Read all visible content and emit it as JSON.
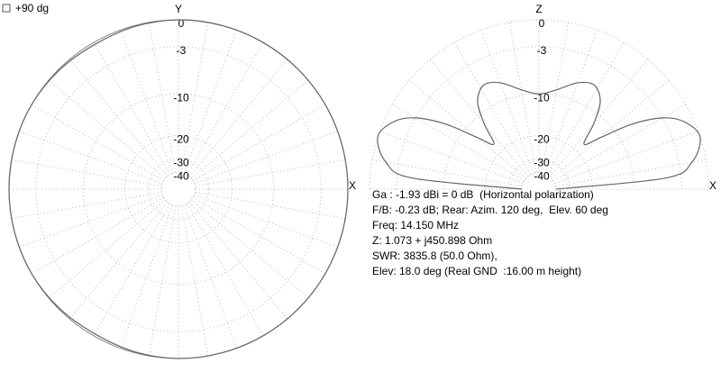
{
  "checkbox_label": "+90 dg",
  "chart_data": [
    {
      "type": "polar",
      "span": 360,
      "top_label": "Y",
      "side_label": "X",
      "rticks": [
        0,
        -3,
        -10,
        -20,
        -30,
        -40
      ],
      "x": [
        0,
        15,
        30,
        45,
        60,
        75,
        90,
        105,
        120,
        135,
        150,
        165,
        180,
        195,
        210,
        225,
        240,
        255,
        270,
        285,
        300,
        315,
        330,
        345
      ],
      "values": [
        0,
        0,
        0,
        0,
        0,
        0,
        0,
        -0.1,
        -0.23,
        -0.1,
        0,
        0,
        0,
        0,
        0,
        -0.1,
        -0.23,
        -0.1,
        0,
        0,
        0,
        0,
        0,
        0
      ]
    },
    {
      "type": "polar",
      "span": 180,
      "top_label": "Z",
      "side_label": "X",
      "rticks": [
        0,
        -3,
        -10,
        -20,
        -30,
        -40
      ],
      "x": [
        0,
        5,
        10,
        18,
        25,
        30,
        35,
        40,
        45,
        50,
        55,
        62,
        70,
        80,
        90,
        100,
        110,
        118,
        125,
        130,
        135,
        140,
        145,
        150,
        155,
        162,
        170,
        175,
        180
      ],
      "values": [
        -40,
        -5,
        -1.5,
        0,
        -1,
        -3,
        -7,
        -13,
        -17,
        -12,
        -8,
        -6.3,
        -7,
        -9,
        -10,
        -9,
        -7,
        -6.3,
        -8,
        -12,
        -17,
        -13,
        -7,
        -3,
        -1,
        0,
        -1.5,
        -5,
        -40
      ]
    }
  ],
  "info": [
    "Ga : -1.93 dBi = 0 dB  (Horizontal polarization)",
    "F/B: -0.23 dB; Rear: Azim. 120 deg,  Elev. 60 deg",
    "Freq: 14.150 MHz",
    "Z: 1.073 + j450.898 Ohm",
    "SWR: 3835.8 (50.0 Ohm),",
    "Elev: 18.0 deg (Real GND  :16.00 m height)"
  ]
}
